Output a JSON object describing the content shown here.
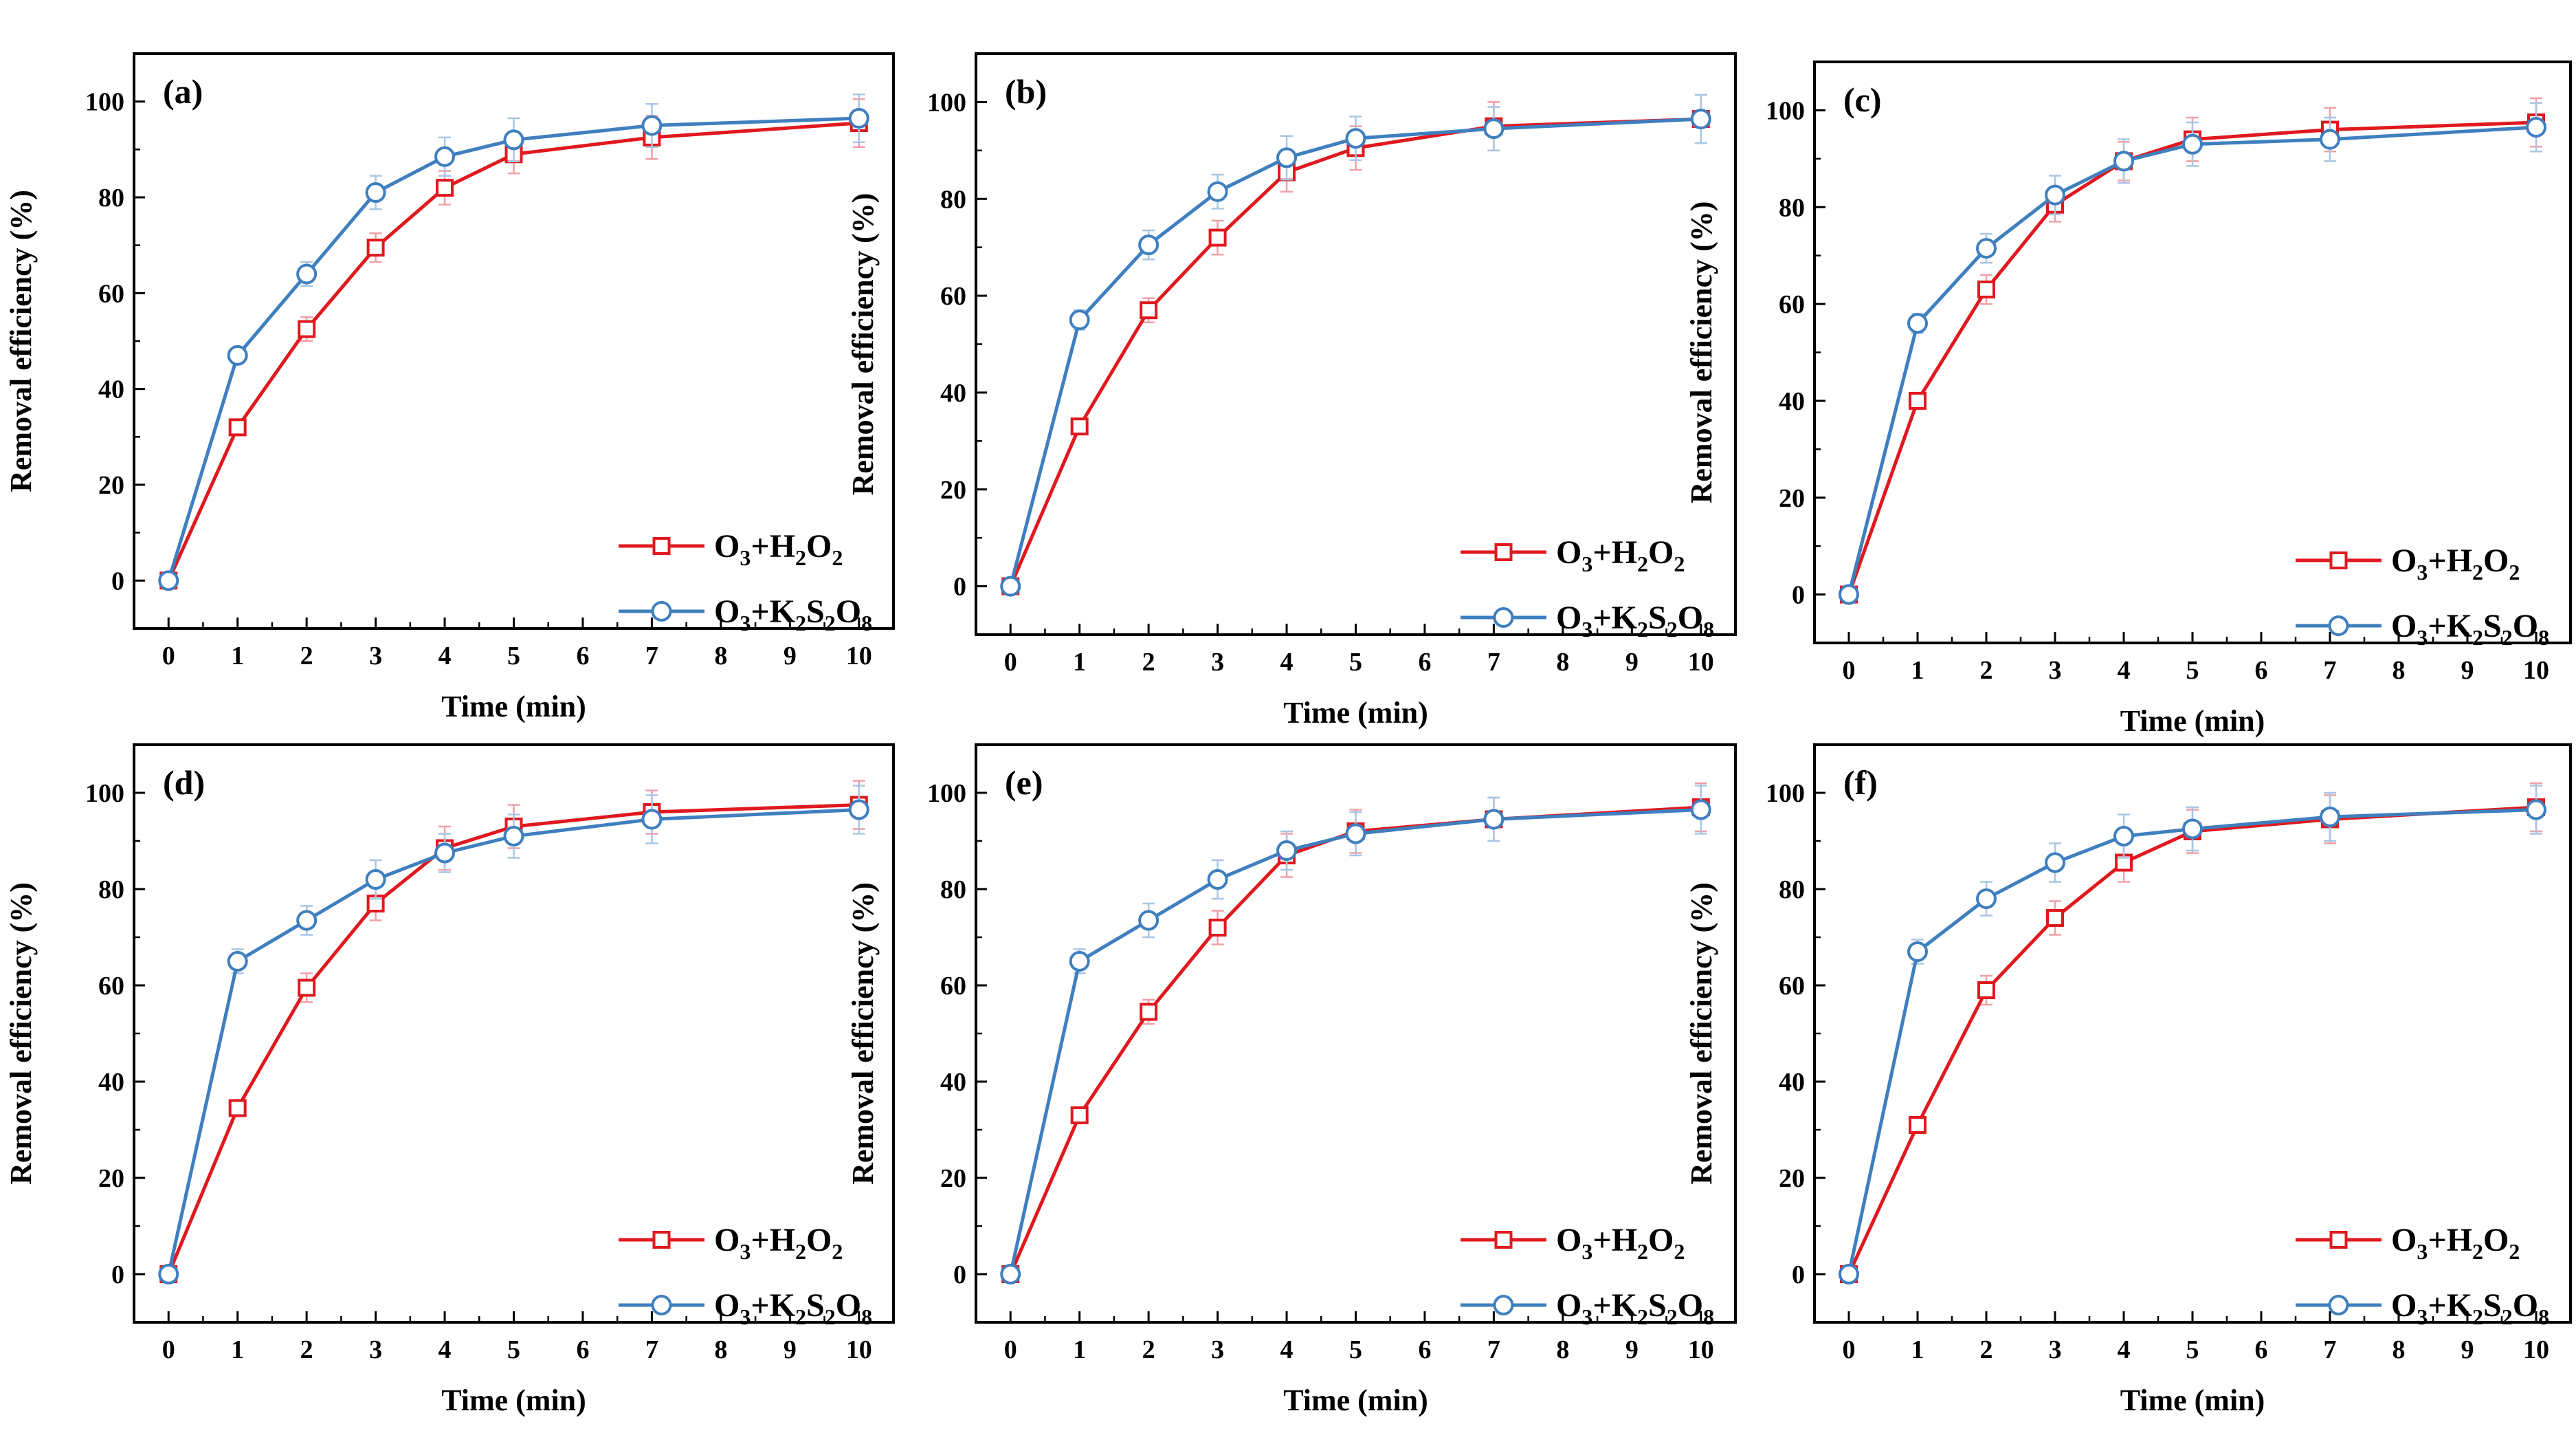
{
  "colors": {
    "h2o2": "#e0191f",
    "k2s2o8": "#3f7fbf",
    "frame": "#000000"
  },
  "chart_data": [
    {
      "type": "line",
      "panel_label": "(a)",
      "xlabel": "Time (min)",
      "ylabel": "Removal efficiency (%)",
      "x_ticks": [
        "0",
        "1",
        "2",
        "3",
        "4",
        "5",
        "6",
        "7",
        "8",
        "9",
        "10"
      ],
      "y_ticks": [
        "0",
        "20",
        "40",
        "60",
        "80",
        "100"
      ],
      "xlim": [
        -0.5,
        10.5
      ],
      "ylim": [
        -10,
        110
      ],
      "x": [
        0,
        1,
        2,
        3,
        4,
        5,
        7,
        10
      ],
      "series": [
        {
          "name": "O3+H2O2",
          "label_parts": [
            [
              "O",
              ""
            ],
            [
              "3",
              "sub"
            ],
            [
              "+H",
              ""
            ],
            [
              "2",
              "sub"
            ],
            [
              "O",
              ""
            ],
            [
              "2",
              "sub"
            ]
          ],
          "marker": "square",
          "color": "#e0191f",
          "values": [
            0,
            32,
            52.5,
            69.5,
            82,
            89,
            92.5,
            95.5
          ],
          "errors": [
            0,
            1.5,
            2.5,
            3,
            3.5,
            4,
            4.5,
            5
          ]
        },
        {
          "name": "O3+K2S2O8",
          "label_parts": [
            [
              "O",
              ""
            ],
            [
              "3",
              "sub"
            ],
            [
              "+K",
              ""
            ],
            [
              "2",
              "sub"
            ],
            [
              "S",
              ""
            ],
            [
              "2",
              "sub"
            ],
            [
              "O",
              ""
            ],
            [
              "8",
              "sub"
            ]
          ],
          "marker": "circle",
          "color": "#3f7fbf",
          "values": [
            0,
            47,
            64,
            81,
            88.5,
            92,
            95,
            96.5
          ],
          "errors": [
            0,
            1.5,
            2.5,
            3.5,
            4,
            4.5,
            4.5,
            5
          ]
        }
      ]
    },
    {
      "type": "line",
      "panel_label": "(b)",
      "xlabel": "Time (min)",
      "ylabel": "Removal efficiency (%)",
      "x_ticks": [
        "0",
        "1",
        "2",
        "3",
        "4",
        "5",
        "6",
        "7",
        "8",
        "9",
        "10"
      ],
      "y_ticks": [
        "0",
        "20",
        "40",
        "60",
        "80",
        "100"
      ],
      "xlim": [
        -0.5,
        10.5
      ],
      "ylim": [
        -10,
        110
      ],
      "x": [
        0,
        1,
        2,
        3,
        4,
        5,
        7,
        10
      ],
      "series": [
        {
          "name": "O3+H2O2",
          "label_parts": [
            [
              "O",
              ""
            ],
            [
              "3",
              "sub"
            ],
            [
              "+H",
              ""
            ],
            [
              "2",
              "sub"
            ],
            [
              "O",
              ""
            ],
            [
              "2",
              "sub"
            ]
          ],
          "marker": "square",
          "color": "#e0191f",
          "values": [
            0,
            33,
            57,
            72,
            85.5,
            90.5,
            95,
            96.5
          ],
          "errors": [
            0,
            1.5,
            2.5,
            3.5,
            4,
            4.5,
            5,
            5
          ]
        },
        {
          "name": "O3+K2S2O8",
          "label_parts": [
            [
              "O",
              ""
            ],
            [
              "3",
              "sub"
            ],
            [
              "+K",
              ""
            ],
            [
              "2",
              "sub"
            ],
            [
              "S",
              ""
            ],
            [
              "2",
              "sub"
            ],
            [
              "O",
              ""
            ],
            [
              "8",
              "sub"
            ]
          ],
          "marker": "circle",
          "color": "#3f7fbf",
          "values": [
            0,
            55,
            70.5,
            81.5,
            88.5,
            92.5,
            94.5,
            96.5
          ],
          "errors": [
            0,
            2,
            3,
            3.5,
            4.5,
            4.5,
            4.5,
            5
          ]
        }
      ]
    },
    {
      "type": "line",
      "panel_label": "(c)",
      "xlabel": "Time (min)",
      "ylabel": "Removal efficiency (%)",
      "x_ticks": [
        "0",
        "1",
        "2",
        "3",
        "4",
        "5",
        "6",
        "7",
        "8",
        "9",
        "10"
      ],
      "y_ticks": [
        "0",
        "20",
        "40",
        "60",
        "80",
        "100"
      ],
      "xlim": [
        -0.5,
        10.5
      ],
      "ylim": [
        -10,
        110
      ],
      "x": [
        0,
        1,
        2,
        3,
        4,
        5,
        7,
        10
      ],
      "series": [
        {
          "name": "O3+H2O2",
          "label_parts": [
            [
              "O",
              ""
            ],
            [
              "3",
              "sub"
            ],
            [
              "+H",
              ""
            ],
            [
              "2",
              "sub"
            ],
            [
              "O",
              ""
            ],
            [
              "2",
              "sub"
            ]
          ],
          "marker": "square",
          "color": "#e0191f",
          "values": [
            0,
            40,
            63,
            80.5,
            89.5,
            94,
            96,
            97.5
          ],
          "errors": [
            0,
            1.5,
            3,
            3.5,
            4,
            4.5,
            4.5,
            5
          ]
        },
        {
          "name": "O3+K2S2O8",
          "label_parts": [
            [
              "O",
              ""
            ],
            [
              "3",
              "sub"
            ],
            [
              "+K",
              ""
            ],
            [
              "2",
              "sub"
            ],
            [
              "S",
              ""
            ],
            [
              "2",
              "sub"
            ],
            [
              "O",
              ""
            ],
            [
              "8",
              "sub"
            ]
          ],
          "marker": "circle",
          "color": "#3f7fbf",
          "values": [
            0,
            56,
            71.5,
            82.5,
            89.5,
            93,
            94,
            96.5
          ],
          "errors": [
            0,
            2,
            3,
            4,
            4.5,
            4.5,
            4.5,
            5
          ]
        }
      ]
    },
    {
      "type": "line",
      "panel_label": "(d)",
      "xlabel": "Time (min)",
      "ylabel": "Removal efficiency (%)",
      "x_ticks": [
        "0",
        "1",
        "2",
        "3",
        "4",
        "5",
        "6",
        "7",
        "8",
        "9",
        "10"
      ],
      "y_ticks": [
        "0",
        "20",
        "40",
        "60",
        "80",
        "100"
      ],
      "xlim": [
        -0.5,
        10.5
      ],
      "ylim": [
        -10,
        110
      ],
      "x": [
        0,
        1,
        2,
        3,
        4,
        5,
        7,
        10
      ],
      "series": [
        {
          "name": "O3+H2O2",
          "label_parts": [
            [
              "O",
              ""
            ],
            [
              "3",
              "sub"
            ],
            [
              "+H",
              ""
            ],
            [
              "2",
              "sub"
            ],
            [
              "O",
              ""
            ],
            [
              "2",
              "sub"
            ]
          ],
          "marker": "square",
          "color": "#e0191f",
          "values": [
            0,
            34.5,
            59.5,
            77,
            88.5,
            93,
            96,
            97.5
          ],
          "errors": [
            0,
            1.5,
            3,
            3.5,
            4.5,
            4.5,
            4.5,
            5
          ]
        },
        {
          "name": "O3+K2S2O8",
          "label_parts": [
            [
              "O",
              ""
            ],
            [
              "3",
              "sub"
            ],
            [
              "+K",
              ""
            ],
            [
              "2",
              "sub"
            ],
            [
              "S",
              ""
            ],
            [
              "2",
              "sub"
            ],
            [
              "O",
              ""
            ],
            [
              "8",
              "sub"
            ]
          ],
          "marker": "circle",
          "color": "#3f7fbf",
          "values": [
            0,
            65,
            73.5,
            82,
            87.5,
            91,
            94.5,
            96.5
          ],
          "errors": [
            0,
            2.5,
            3,
            4,
            4,
            4.5,
            5,
            5
          ]
        }
      ]
    },
    {
      "type": "line",
      "panel_label": "(e)",
      "xlabel": "Time (min)",
      "ylabel": "Removal efficiency (%)",
      "x_ticks": [
        "0",
        "1",
        "2",
        "3",
        "4",
        "5",
        "6",
        "7",
        "8",
        "9",
        "10"
      ],
      "y_ticks": [
        "0",
        "20",
        "40",
        "60",
        "80",
        "100"
      ],
      "xlim": [
        -0.5,
        10.5
      ],
      "ylim": [
        -10,
        110
      ],
      "x": [
        0,
        1,
        2,
        3,
        4,
        5,
        7,
        10
      ],
      "series": [
        {
          "name": "O3+H2O2",
          "label_parts": [
            [
              "O",
              ""
            ],
            [
              "3",
              "sub"
            ],
            [
              "+H",
              ""
            ],
            [
              "2",
              "sub"
            ],
            [
              "O",
              ""
            ],
            [
              "2",
              "sub"
            ]
          ],
          "marker": "square",
          "color": "#e0191f",
          "values": [
            0,
            33,
            54.5,
            72,
            87,
            92,
            94.5,
            97
          ],
          "errors": [
            0,
            1.5,
            2.5,
            3.5,
            4.5,
            4.5,
            4.5,
            5
          ]
        },
        {
          "name": "O3+K2S2O8",
          "label_parts": [
            [
              "O",
              ""
            ],
            [
              "3",
              "sub"
            ],
            [
              "+K",
              ""
            ],
            [
              "2",
              "sub"
            ],
            [
              "S",
              ""
            ],
            [
              "2",
              "sub"
            ],
            [
              "O",
              ""
            ],
            [
              "8",
              "sub"
            ]
          ],
          "marker": "circle",
          "color": "#3f7fbf",
          "values": [
            0,
            65,
            73.5,
            82,
            88,
            91.5,
            94.5,
            96.5
          ],
          "errors": [
            0,
            2.5,
            3.5,
            4,
            4,
            4.5,
            4.5,
            5
          ]
        }
      ]
    },
    {
      "type": "line",
      "panel_label": "(f)",
      "xlabel": "Time (min)",
      "ylabel": "Removal efficiency (%)",
      "x_ticks": [
        "0",
        "1",
        "2",
        "3",
        "4",
        "5",
        "6",
        "7",
        "8",
        "9",
        "10"
      ],
      "y_ticks": [
        "0",
        "20",
        "40",
        "60",
        "80",
        "100"
      ],
      "xlim": [
        -0.5,
        10.5
      ],
      "ylim": [
        -10,
        110
      ],
      "x": [
        0,
        1,
        2,
        3,
        4,
        5,
        7,
        10
      ],
      "series": [
        {
          "name": "O3+H2O2",
          "label_parts": [
            [
              "O",
              ""
            ],
            [
              "3",
              "sub"
            ],
            [
              "+H",
              ""
            ],
            [
              "2",
              "sub"
            ],
            [
              "O",
              ""
            ],
            [
              "2",
              "sub"
            ]
          ],
          "marker": "square",
          "color": "#e0191f",
          "values": [
            0,
            31,
            59,
            74,
            85.5,
            92,
            94.5,
            97
          ],
          "errors": [
            0,
            1.5,
            3,
            3.5,
            4,
            4.5,
            5,
            5
          ]
        },
        {
          "name": "O3+K2S2O8",
          "label_parts": [
            [
              "O",
              ""
            ],
            [
              "3",
              "sub"
            ],
            [
              "+K",
              ""
            ],
            [
              "2",
              "sub"
            ],
            [
              "S",
              ""
            ],
            [
              "2",
              "sub"
            ],
            [
              "O",
              ""
            ],
            [
              "8",
              "sub"
            ]
          ],
          "marker": "circle",
          "color": "#3f7fbf",
          "values": [
            0,
            67,
            78,
            85.5,
            91,
            92.5,
            95,
            96.5
          ],
          "errors": [
            0,
            2.5,
            3.5,
            4,
            4.5,
            4.5,
            5,
            5
          ]
        }
      ]
    }
  ]
}
